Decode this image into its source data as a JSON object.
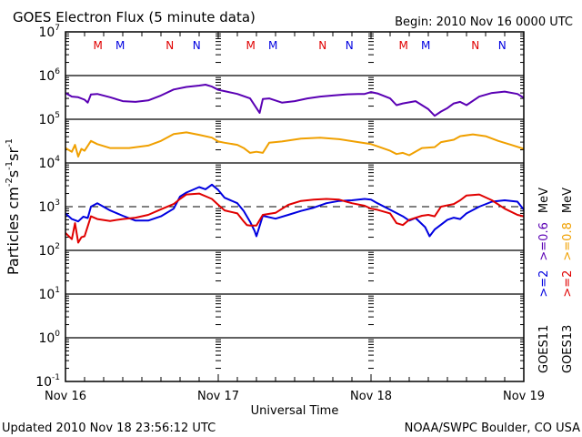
{
  "chart_data": {
    "type": "line",
    "title": "GOES Electron Flux (5 minute data)",
    "begin_label": "Begin: 2010 Nov 16 0000 UTC",
    "xlabel": "Universal Time",
    "ylabel": "Particles cm⁻²s⁻¹sr⁻¹",
    "ylabel_parts": {
      "base": "Particles cm",
      "s": "s",
      "sr": "sr",
      "exp_cm": "-2",
      "exp_s": "-1",
      "exp_sr": "-1"
    },
    "yscale": "log",
    "ylim": [
      0.1,
      10000000
    ],
    "y_ticks": [
      {
        "base": "10",
        "exp": "7",
        "value": 7
      },
      {
        "base": "10",
        "exp": "6",
        "value": 6
      },
      {
        "base": "10",
        "exp": "5",
        "value": 5
      },
      {
        "base": "10",
        "exp": "4",
        "value": 4
      },
      {
        "base": "10",
        "exp": "3",
        "value": 3
      },
      {
        "base": "10",
        "exp": "2",
        "value": 2
      },
      {
        "base": "10",
        "exp": "1",
        "value": 1
      },
      {
        "base": "10",
        "exp": "0",
        "value": 0
      },
      {
        "base": "10",
        "exp": "-1",
        "value": -1
      }
    ],
    "xlim_hours": [
      0,
      72
    ],
    "x_ticks": [
      {
        "label": "Nov 16",
        "hour": 0
      },
      {
        "label": "Nov 17",
        "hour": 24
      },
      {
        "label": "Nov 18",
        "hour": 48
      },
      {
        "label": "Nov 19",
        "hour": 72
      }
    ],
    "decade_gridlines": [
      6,
      5,
      4,
      2,
      1,
      0
    ],
    "threshold_line": {
      "value": 1000,
      "style": "dashed"
    },
    "markers": [
      {
        "label": "M",
        "hour": 5.1,
        "color": "#e00000"
      },
      {
        "label": "M",
        "hour": 8.6,
        "color": "#0000e0"
      },
      {
        "label": "N",
        "hour": 16.4,
        "color": "#e00000"
      },
      {
        "label": "N",
        "hour": 20.6,
        "color": "#0000e0"
      },
      {
        "label": "M",
        "hour": 29.1,
        "color": "#e00000"
      },
      {
        "label": "M",
        "hour": 32.6,
        "color": "#0000e0"
      },
      {
        "label": "N",
        "hour": 40.4,
        "color": "#e00000"
      },
      {
        "label": "N",
        "hour": 44.6,
        "color": "#0000e0"
      },
      {
        "label": "M",
        "hour": 53.1,
        "color": "#e00000"
      },
      {
        "label": "M",
        "hour": 56.6,
        "color": "#0000e0"
      },
      {
        "label": "N",
        "hour": 64.4,
        "color": "#e00000"
      },
      {
        "label": "N",
        "hour": 68.6,
        "color": "#0000e0"
      }
    ],
    "legend": {
      "placement": "right (rotated)",
      "columns": [
        {
          "sat": "GOES11",
          "entries": [
            {
              "text": ">=2",
              "color": "#0000e0"
            },
            {
              "text": ">=0.6",
              "color": "#5a00b4"
            },
            {
              "text": "MeV",
              "color": "#000000"
            }
          ]
        },
        {
          "sat": "GOES13",
          "entries": [
            {
              "text": ">=2",
              "color": "#e00000"
            },
            {
              "text": ">=0.8",
              "color": "#f0a000"
            },
            {
              "text": "MeV",
              "color": "#000000"
            }
          ]
        }
      ]
    },
    "series": [
      {
        "name": "GOES11 >=0.6 MeV",
        "color": "#5a00b4",
        "hours": [
          0,
          1,
          2,
          3,
          3.5,
          4,
          5,
          7,
          9,
          11,
          13,
          15,
          17,
          19,
          21,
          22,
          23,
          24,
          25,
          27,
          29,
          30,
          30.5,
          31,
          32,
          34,
          36,
          38,
          40,
          42,
          44,
          46,
          47,
          48,
          49,
          51,
          52,
          53,
          55,
          57,
          58,
          59,
          60,
          61,
          62,
          63,
          65,
          67,
          69,
          71,
          72
        ],
        "values": [
          400000,
          330000,
          320000,
          280000,
          240000,
          370000,
          380000,
          320000,
          260000,
          250000,
          270000,
          350000,
          480000,
          550000,
          590000,
          620000,
          560000,
          470000,
          440000,
          380000,
          300000,
          180000,
          140000,
          290000,
          300000,
          240000,
          260000,
          300000,
          330000,
          350000,
          370000,
          380000,
          380000,
          420000,
          390000,
          300000,
          210000,
          230000,
          260000,
          170000,
          120000,
          150000,
          180000,
          230000,
          250000,
          210000,
          330000,
          400000,
          430000,
          380000,
          310000
        ]
      },
      {
        "name": "GOES13 >=0.8 MeV",
        "color": "#f0a000",
        "hours": [
          0,
          1,
          1.5,
          2,
          2.5,
          3,
          4,
          5,
          7,
          10,
          13,
          15,
          17,
          19,
          21,
          23,
          24,
          25,
          27,
          28,
          29,
          30,
          31,
          32,
          34,
          37,
          40,
          43,
          46,
          48,
          49,
          51,
          52,
          53,
          54,
          56,
          58,
          59,
          61,
          62,
          64,
          66,
          68,
          70,
          72
        ],
        "values": [
          22000,
          18000,
          26000,
          14000,
          21000,
          19000,
          32000,
          27000,
          22000,
          22000,
          25000,
          32000,
          46000,
          50000,
          44000,
          38000,
          31000,
          29000,
          26000,
          22000,
          17000,
          18000,
          17000,
          29000,
          31000,
          36000,
          38000,
          35000,
          30000,
          27000,
          24000,
          19000,
          16000,
          17000,
          15000,
          22000,
          23000,
          30000,
          34000,
          41000,
          45000,
          41000,
          32000,
          26000,
          21000
        ]
      },
      {
        "name": "GOES11 >=2 MeV",
        "color": "#0000e0",
        "hours": [
          0,
          1,
          2,
          2.8,
          3.5,
          4,
          5,
          7,
          9,
          11,
          13,
          15,
          17,
          18,
          19,
          21,
          22,
          23,
          24,
          25,
          27,
          28,
          29,
          29.7,
          30,
          31,
          33,
          35,
          37,
          39,
          41,
          43,
          45,
          47,
          48,
          49,
          51,
          53,
          54,
          55,
          56.5,
          57.2,
          58,
          60,
          61,
          62,
          63,
          65,
          67,
          69,
          71,
          72
        ],
        "values": [
          700.0,
          520,
          460,
          590,
          550,
          1000,
          1200,
          820,
          620,
          480,
          480,
          600,
          900,
          1700,
          2100,
          2800,
          2500,
          3200,
          2400,
          1600,
          1200,
          800,
          450,
          280,
          210,
          620,
          530,
          650,
          800,
          950,
          1200,
          1350,
          1400,
          1500,
          1450,
          1200,
          850,
          600,
          480,
          550,
          340,
          210,
          300,
          500,
          560,
          520,
          700,
          1000,
          1300,
          1400,
          1300,
          850
        ]
      },
      {
        "name": "GOES13 >=2 MeV",
        "color": "#e00000",
        "hours": [
          0,
          1,
          1.5,
          2,
          2.5,
          3,
          4,
          5,
          7,
          9,
          11,
          13,
          15,
          17,
          18,
          19,
          21,
          23,
          24,
          25,
          27,
          28,
          28.5,
          29,
          30,
          31,
          33,
          35,
          37,
          39,
          41,
          43,
          45,
          47,
          48,
          49,
          51,
          52,
          53,
          54,
          56,
          57,
          58,
          59,
          61,
          62,
          63,
          65,
          67,
          69,
          71,
          72
        ],
        "values": [
          250,
          180,
          420,
          150,
          200,
          210,
          600,
          520,
          470,
          520,
          560,
          650,
          870,
          1150,
          1500,
          1900,
          2000,
          1500,
          1100,
          820,
          700,
          460,
          380,
          370,
          370,
          650,
          720,
          1100,
          1350,
          1450,
          1500,
          1450,
          1200,
          1050,
          900,
          850,
          700,
          420,
          380,
          500,
          620,
          650,
          600,
          1000,
          1150,
          1400,
          1800,
          1900,
          1400,
          900,
          650,
          600
        ]
      }
    ]
  },
  "footer": {
    "updated": "Updated 2010 Nov 18 23:56:12 UTC",
    "credit": "NOAA/SWPC Boulder, CO USA"
  }
}
